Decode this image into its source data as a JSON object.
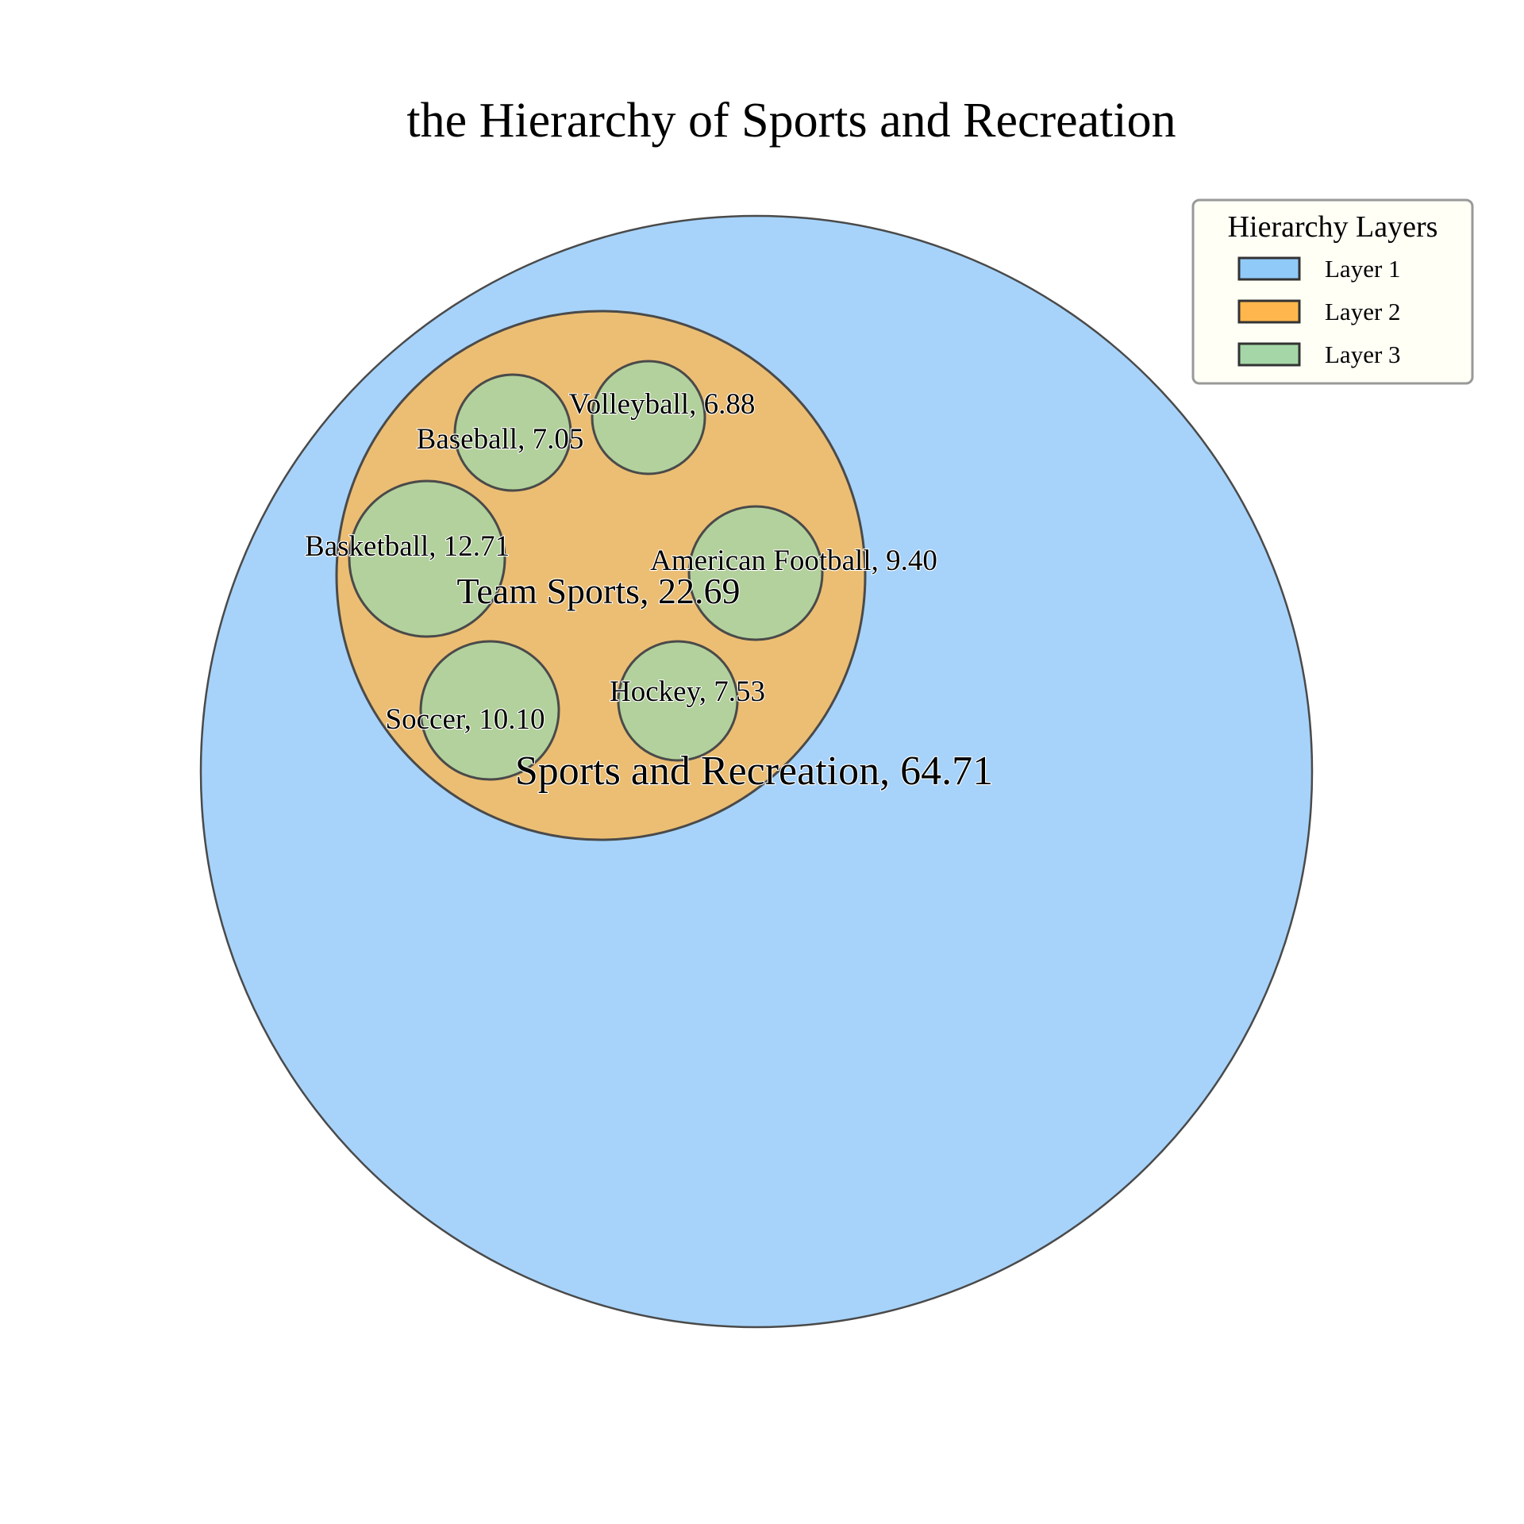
{
  "chart_data": {
    "type": "circle_packing",
    "title": "the Hierarchy of Sports and Recreation",
    "legend": {
      "title": "Hierarchy Layers",
      "placement": "top-right",
      "entries": [
        {
          "label": "Layer 1",
          "color": "#90CAF9"
        },
        {
          "label": "Layer 2",
          "color": "#FFB74D"
        },
        {
          "label": "Layer 3",
          "color": "#A5D6A7"
        }
      ]
    },
    "nodes": [
      {
        "name": "Sports and Recreation",
        "value": 64.71,
        "label": "Sports and Recreation, 64.71",
        "layer": 1,
        "color": "#A7D3FA"
      },
      {
        "name": "Team Sports",
        "value": 22.69,
        "label": "Team Sports, 22.69",
        "layer": 2,
        "parent": "Sports and Recreation",
        "color": "#ECBE73"
      },
      {
        "name": "Basketball",
        "value": 12.71,
        "label": "Basketball, 12.71",
        "layer": 3,
        "parent": "Team Sports",
        "color": "#B3D19C"
      },
      {
        "name": "Soccer",
        "value": 10.1,
        "label": "Soccer, 10.10",
        "layer": 3,
        "parent": "Team Sports",
        "color": "#B3D19C"
      },
      {
        "name": "American Football",
        "value": 9.4,
        "label": "American Football, 9.40",
        "layer": 3,
        "parent": "Team Sports",
        "color": "#B3D19C"
      },
      {
        "name": "Hockey",
        "value": 7.53,
        "label": "Hockey, 7.53",
        "layer": 3,
        "parent": "Team Sports",
        "color": "#B3D19C"
      },
      {
        "name": "Baseball",
        "value": 7.05,
        "label": "Baseball, 7.05",
        "layer": 3,
        "parent": "Team Sports",
        "color": "#B3D19C"
      },
      {
        "name": "Volleyball",
        "value": 6.88,
        "label": "Volleyball, 6.88",
        "layer": 3,
        "parent": "Team Sports",
        "color": "#B3D19C"
      }
    ]
  }
}
